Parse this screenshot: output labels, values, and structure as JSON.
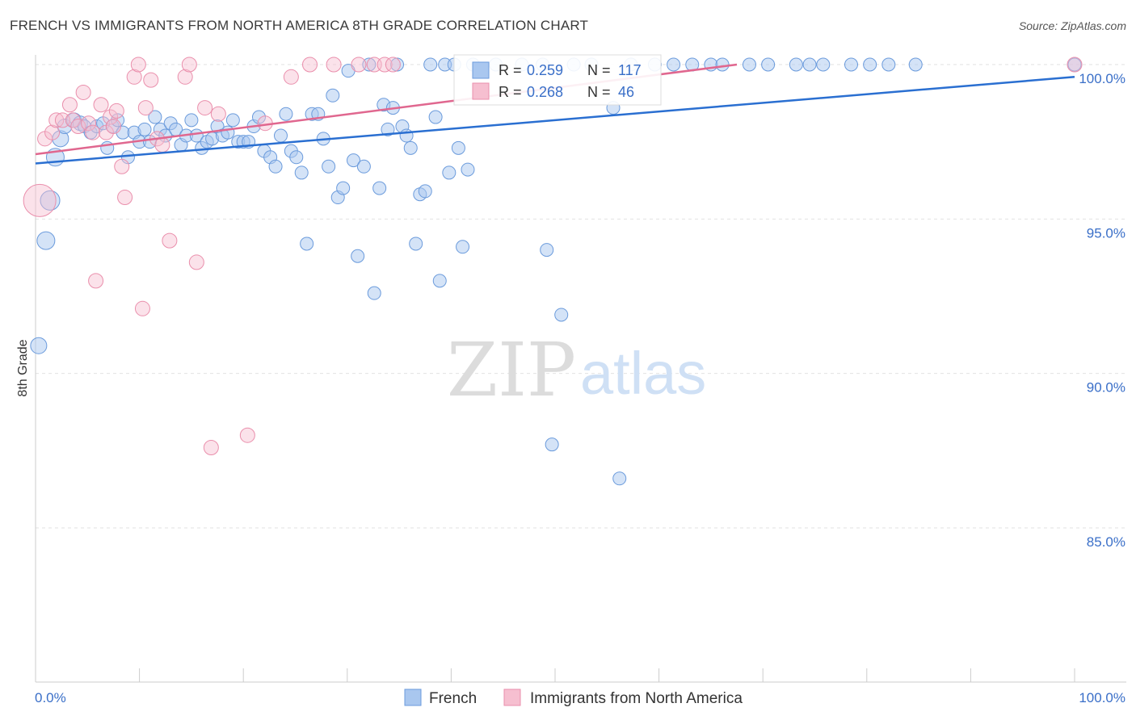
{
  "header": {
    "title": "FRENCH VS IMMIGRANTS FROM NORTH AMERICA 8TH GRADE CORRELATION CHART",
    "source": "Source: ZipAtlas.com"
  },
  "watermark": {
    "zip": "ZIP",
    "atlas": "atlas"
  },
  "legend": {
    "r_label": "R =",
    "n_label": "N =",
    "rows": [
      {
        "r": "0.259",
        "n": "117"
      },
      {
        "r": "0.268",
        "n": "46"
      }
    ]
  },
  "colors": {
    "french_fill": "#a9c7ef",
    "french_stroke": "#6b9bdc",
    "french_line": "#2a6fd1",
    "immig_fill": "#f6bfd0",
    "immig_stroke": "#ea8fac",
    "immig_line": "#e0678f",
    "axis_label": "#3a6fc8",
    "grid": "#e2e2e2"
  },
  "chart_data": {
    "type": "scatter",
    "title": "FRENCH VS IMMIGRANTS FROM NORTH AMERICA 8TH GRADE CORRELATION CHART",
    "xlabel": "",
    "ylabel": "8th Grade",
    "xlim": [
      0,
      100
    ],
    "ylim": [
      80.5,
      100.8
    ],
    "x_ticks": [
      "0.0%",
      "100.0%"
    ],
    "y_ticks": [
      {
        "value": 100,
        "label": "100.0%"
      },
      {
        "value": 95,
        "label": "95.0%"
      },
      {
        "value": 90,
        "label": "90.0%"
      },
      {
        "value": 85,
        "label": "85.0%"
      }
    ],
    "grid": true,
    "legend_position": "top-center",
    "series": [
      {
        "name": "French",
        "r": 0.259,
        "n": 117,
        "trend": {
          "x": [
            0,
            100
          ],
          "y": [
            96.8,
            99.6
          ]
        },
        "points": [
          [
            0.3,
            90.9,
            10
          ],
          [
            1.0,
            94.3,
            11
          ],
          [
            1.4,
            95.6,
            12
          ],
          [
            1.9,
            97.0,
            11
          ],
          [
            2.4,
            97.6,
            10
          ],
          [
            2.8,
            98.0,
            9
          ],
          [
            3.7,
            98.2,
            9
          ],
          [
            4.3,
            98.1,
            9
          ],
          [
            4.7,
            98.0,
            8
          ],
          [
            5.3,
            97.8,
            8
          ],
          [
            5.9,
            98.0,
            8
          ],
          [
            6.5,
            98.1,
            8
          ],
          [
            6.9,
            97.3,
            8
          ],
          [
            7.4,
            98.0,
            8
          ],
          [
            7.9,
            98.2,
            8
          ],
          [
            8.4,
            97.8,
            8
          ],
          [
            8.9,
            97.0,
            8
          ],
          [
            9.5,
            97.8,
            8
          ],
          [
            10.0,
            97.5,
            8
          ],
          [
            10.5,
            97.9,
            8
          ],
          [
            11.0,
            97.5,
            8
          ],
          [
            11.5,
            98.3,
            8
          ],
          [
            12.0,
            97.9,
            8
          ],
          [
            12.5,
            97.7,
            8
          ],
          [
            13.0,
            98.1,
            8
          ],
          [
            13.5,
            97.9,
            8
          ],
          [
            14.0,
            97.4,
            8
          ],
          [
            14.5,
            97.7,
            8
          ],
          [
            15.0,
            98.2,
            8
          ],
          [
            15.5,
            97.7,
            8
          ],
          [
            16.0,
            97.3,
            8
          ],
          [
            16.5,
            97.5,
            8
          ],
          [
            17.0,
            97.6,
            8
          ],
          [
            17.5,
            98.0,
            8
          ],
          [
            18.0,
            97.7,
            8
          ],
          [
            18.5,
            97.8,
            8
          ],
          [
            19.0,
            98.2,
            8
          ],
          [
            19.5,
            97.5,
            8
          ],
          [
            20.0,
            97.5,
            8
          ],
          [
            20.5,
            97.5,
            8
          ],
          [
            21.0,
            98.0,
            8
          ],
          [
            21.5,
            98.3,
            8
          ],
          [
            22.0,
            97.2,
            8
          ],
          [
            22.6,
            97.0,
            8
          ],
          [
            23.1,
            96.7,
            8
          ],
          [
            23.6,
            97.7,
            8
          ],
          [
            24.1,
            98.4,
            8
          ],
          [
            24.6,
            97.2,
            8
          ],
          [
            25.1,
            97.0,
            8
          ],
          [
            25.6,
            96.5,
            8
          ],
          [
            26.1,
            94.2,
            8
          ],
          [
            26.6,
            98.4,
            8
          ],
          [
            27.2,
            98.4,
            8
          ],
          [
            27.7,
            97.6,
            8
          ],
          [
            28.2,
            96.7,
            8
          ],
          [
            28.6,
            99.0,
            8
          ],
          [
            29.1,
            95.7,
            8
          ],
          [
            29.6,
            96.0,
            8
          ],
          [
            30.1,
            99.8,
            8
          ],
          [
            30.6,
            96.9,
            8
          ],
          [
            31.0,
            93.8,
            8
          ],
          [
            31.6,
            96.7,
            8
          ],
          [
            32.1,
            100.0,
            8
          ],
          [
            32.6,
            92.6,
            8
          ],
          [
            33.1,
            96.0,
            8
          ],
          [
            33.5,
            98.7,
            8
          ],
          [
            33.9,
            97.9,
            8
          ],
          [
            34.4,
            98.6,
            8
          ],
          [
            34.8,
            100.0,
            8
          ],
          [
            35.3,
            98.0,
            8
          ],
          [
            35.7,
            97.7,
            8
          ],
          [
            36.1,
            97.3,
            8
          ],
          [
            36.6,
            94.2,
            8
          ],
          [
            37.0,
            95.8,
            8
          ],
          [
            37.5,
            95.9,
            8
          ],
          [
            38.0,
            100.0,
            8
          ],
          [
            38.5,
            98.3,
            8
          ],
          [
            38.9,
            93.0,
            8
          ],
          [
            39.4,
            100.0,
            8
          ],
          [
            39.8,
            96.5,
            8
          ],
          [
            40.3,
            100.0,
            8
          ],
          [
            40.7,
            97.3,
            8
          ],
          [
            41.1,
            94.1,
            8
          ],
          [
            41.6,
            96.6,
            8
          ],
          [
            42.1,
            100.0,
            8
          ],
          [
            44.3,
            100.0,
            8
          ],
          [
            46.8,
            100.0,
            8
          ],
          [
            48.8,
            100.0,
            8
          ],
          [
            49.2,
            94.0,
            8
          ],
          [
            49.7,
            87.7,
            8
          ],
          [
            50.6,
            91.9,
            8
          ],
          [
            51.8,
            100.0,
            8
          ],
          [
            53.5,
            100.0,
            8
          ],
          [
            55.6,
            98.6,
            8
          ],
          [
            56.2,
            86.6,
            8
          ],
          [
            57.3,
            100.0,
            8
          ],
          [
            59.6,
            100.0,
            8
          ],
          [
            61.4,
            100.0,
            8
          ],
          [
            63.2,
            100.0,
            8
          ],
          [
            65.0,
            100.0,
            8
          ],
          [
            66.1,
            100.0,
            8
          ],
          [
            68.7,
            100.0,
            8
          ],
          [
            70.5,
            100.0,
            8
          ],
          [
            73.2,
            100.0,
            8
          ],
          [
            74.5,
            100.0,
            8
          ],
          [
            75.8,
            100.0,
            8
          ],
          [
            78.5,
            100.0,
            8
          ],
          [
            80.3,
            100.0,
            8
          ],
          [
            82.1,
            100.0,
            8
          ],
          [
            84.7,
            100.0,
            8
          ],
          [
            100.0,
            100.0,
            8
          ]
        ]
      },
      {
        "name": "Immigrants from North America",
        "r": 0.268,
        "n": 46,
        "trend": {
          "x": [
            0,
            67.5
          ],
          "y": [
            97.1,
            100.0
          ]
        },
        "points": [
          [
            0.4,
            95.6,
            20
          ],
          [
            0.9,
            97.6,
            9
          ],
          [
            1.6,
            97.8,
            9
          ],
          [
            2.0,
            98.2,
            9
          ],
          [
            2.6,
            98.2,
            9
          ],
          [
            3.3,
            98.7,
            9
          ],
          [
            3.6,
            98.2,
            9
          ],
          [
            4.1,
            98.0,
            9
          ],
          [
            4.6,
            99.1,
            9
          ],
          [
            5.1,
            98.1,
            9
          ],
          [
            5.5,
            97.8,
            9
          ],
          [
            5.8,
            93.0,
            9
          ],
          [
            6.3,
            98.7,
            9
          ],
          [
            6.8,
            97.8,
            9
          ],
          [
            7.2,
            98.3,
            9
          ],
          [
            7.5,
            98.0,
            9
          ],
          [
            7.8,
            98.5,
            9
          ],
          [
            8.3,
            96.7,
            9
          ],
          [
            8.6,
            95.7,
            9
          ],
          [
            9.5,
            99.6,
            9
          ],
          [
            9.9,
            100.0,
            9
          ],
          [
            10.3,
            92.1,
            9
          ],
          [
            10.6,
            98.6,
            9
          ],
          [
            11.1,
            99.5,
            9
          ],
          [
            11.7,
            97.6,
            9
          ],
          [
            12.2,
            97.4,
            9
          ],
          [
            12.9,
            94.3,
            9
          ],
          [
            14.4,
            99.6,
            9
          ],
          [
            14.8,
            100.0,
            9
          ],
          [
            15.5,
            93.6,
            9
          ],
          [
            16.3,
            98.6,
            9
          ],
          [
            16.9,
            87.6,
            9
          ],
          [
            17.6,
            98.4,
            9
          ],
          [
            20.4,
            88.0,
            9
          ],
          [
            22.1,
            98.1,
            9
          ],
          [
            24.6,
            99.6,
            9
          ],
          [
            26.4,
            100.0,
            9
          ],
          [
            28.7,
            100.0,
            9
          ],
          [
            31.1,
            100.0,
            9
          ],
          [
            32.6,
            100.0,
            9
          ],
          [
            33.6,
            100.0,
            9
          ],
          [
            34.4,
            100.0,
            9
          ],
          [
            100.0,
            100.0,
            9
          ]
        ]
      }
    ]
  }
}
